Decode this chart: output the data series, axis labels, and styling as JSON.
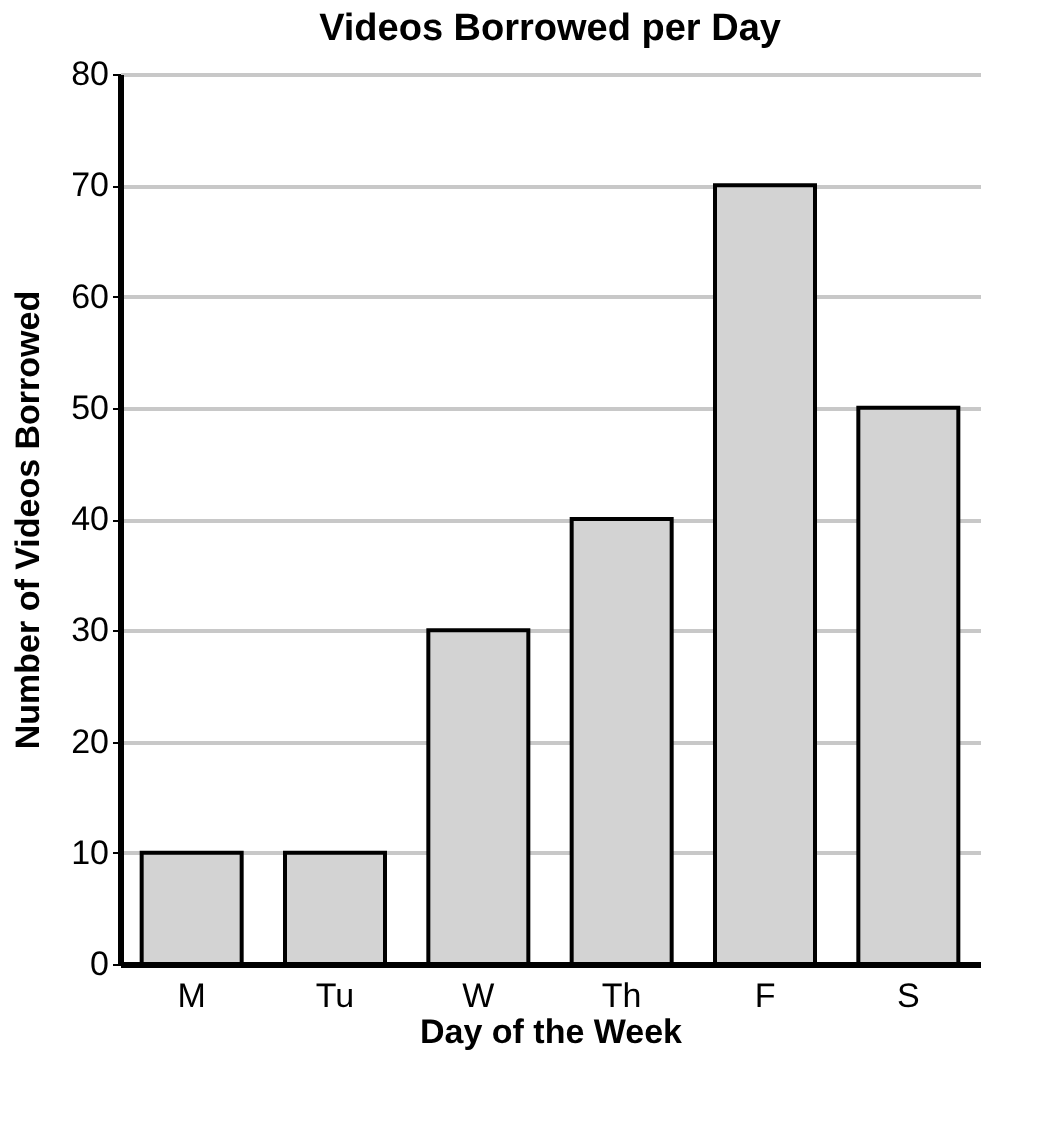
{
  "chart_data": {
    "type": "bar",
    "title": "Videos Borrowed per Day",
    "xlabel": "Day of the Week",
    "ylabel": "Number of Videos Borrowed",
    "categories": [
      "M",
      "Tu",
      "W",
      "Th",
      "F",
      "S"
    ],
    "values": [
      10,
      10,
      30,
      40,
      70,
      50
    ],
    "color": "#d3d3d3",
    "ylim": [
      0,
      80
    ],
    "yticks": [
      0,
      10,
      20,
      30,
      40,
      50,
      60,
      70,
      80
    ],
    "grid": "y"
  }
}
